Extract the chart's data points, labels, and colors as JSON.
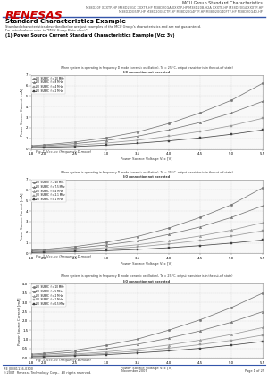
{
  "page_bg": "#ffffff",
  "header_logo_text": "RENESAS",
  "header_right_top": "MCU Group Standard Characteristics",
  "header_right_sub": "M38D20F XXXTP-HP M38D20GC XXXTP-HP M38D20GA XXXTP-HP M38D20B-H2A XXXTP-HP M38D20G4 XXXTP-HP\nM38D20G5TP-HP M38D20G5CTP-HP M38D20G4FTP-HP M38D20G40FTP-HP M38D20G40-HP",
  "divider_color": "#3355aa",
  "section_title": "Standard Characteristics Example",
  "section_desc1": "Standard characteristics described below are just examples of the MCU Group's characteristics and are not guaranteed.",
  "section_desc2": "For rated values, refer to \"MCU Group Data sheet\".",
  "subsection_title": "(1) Power Source Current Standard Characteristics Example (Vcc 3v)",
  "graphs": [
    {
      "title_line1": "When system is operating in frequency D mode (ceramic oscillation), Ta = 25 °C, output transistor is in the cut-off state)",
      "title_line2": "I/O connection not executed",
      "xlabel": "Power Source Voltage Vcc [V]",
      "ylabel": "Power Source Current [mA]",
      "xmin": 1.8,
      "xmax": 5.5,
      "ymin": 0.0,
      "ymax": 7.0,
      "yticks": [
        0.0,
        1.0,
        2.0,
        3.0,
        4.0,
        5.0,
        6.0,
        7.0
      ],
      "xticks": [
        1.8,
        2.0,
        2.5,
        3.0,
        3.5,
        4.0,
        4.5,
        5.0,
        5.5
      ],
      "fig_caption": "Fig. 1. Vcc-Icc (frequency D mode)",
      "series": [
        {
          "label": "VD  SUBRC  f = 10 MHz",
          "marker": "o",
          "color": "#777777",
          "data_x": [
            1.8,
            2.0,
            2.5,
            3.0,
            3.5,
            4.0,
            4.5,
            5.0,
            5.5
          ],
          "data_y": [
            0.3,
            0.38,
            0.65,
            1.05,
            1.6,
            2.4,
            3.4,
            4.6,
            6.2
          ]
        },
        {
          "label": "VD  SUBRC  f = 8 MHz",
          "marker": "^",
          "color": "#777777",
          "data_x": [
            1.8,
            2.0,
            2.5,
            3.0,
            3.5,
            4.0,
            4.5,
            5.0,
            5.5
          ],
          "data_y": [
            0.25,
            0.3,
            0.5,
            0.8,
            1.2,
            1.8,
            2.5,
            3.4,
            4.5
          ]
        },
        {
          "label": "VD  SUBRC  f = 4 MHz",
          "marker": "s",
          "color": "#999999",
          "data_x": [
            1.8,
            2.0,
            2.5,
            3.0,
            3.5,
            4.0,
            4.5,
            5.0,
            5.5
          ],
          "data_y": [
            0.18,
            0.22,
            0.35,
            0.55,
            0.82,
            1.2,
            1.65,
            2.2,
            2.9
          ]
        },
        {
          "label": "VD  SUBRC  f = 2 MHz",
          "marker": "s",
          "color": "#444444",
          "data_x": [
            1.8,
            2.0,
            2.5,
            3.0,
            3.5,
            4.0,
            4.5,
            5.0,
            5.5
          ],
          "data_y": [
            0.12,
            0.15,
            0.23,
            0.36,
            0.53,
            0.76,
            1.04,
            1.38,
            1.8
          ]
        }
      ]
    },
    {
      "title_line1": "When system is operating in frequency D mode (ceramic oscillation), Ta = 25 °C, output transistor is in the cut-off state)",
      "title_line2": "I/O connection not executed",
      "xlabel": "Power Source Voltage Vcc [V]",
      "ylabel": "Power Source Current [mA]",
      "xmin": 1.8,
      "xmax": 5.5,
      "ymin": 0.0,
      "ymax": 7.0,
      "yticks": [
        0.0,
        1.0,
        2.0,
        3.0,
        4.0,
        5.0,
        6.0,
        7.0
      ],
      "xticks": [
        1.8,
        2.0,
        2.5,
        3.0,
        3.5,
        4.0,
        4.5,
        5.0,
        5.5
      ],
      "fig_caption": "Fig. 2. Vcc-Icc (frequency D mode)",
      "series": [
        {
          "label": "VD  SUBRC  f = 10 MHz",
          "marker": "o",
          "color": "#777777",
          "data_x": [
            1.8,
            2.0,
            2.5,
            3.0,
            3.5,
            4.0,
            4.5,
            5.0,
            5.5
          ],
          "data_y": [
            0.3,
            0.38,
            0.65,
            1.05,
            1.6,
            2.4,
            3.4,
            4.6,
            6.2
          ]
        },
        {
          "label": "VD  SUBRC  f = 7.5 MHz",
          "marker": "^",
          "color": "#777777",
          "data_x": [
            1.8,
            2.0,
            2.5,
            3.0,
            3.5,
            4.0,
            4.5,
            5.0,
            5.5
          ],
          "data_y": [
            0.25,
            0.3,
            0.5,
            0.8,
            1.2,
            1.8,
            2.5,
            3.4,
            4.5
          ]
        },
        {
          "label": "VD  SUBRC  f = 4 MHz",
          "marker": "^",
          "color": "#999999",
          "data_x": [
            1.8,
            2.0,
            2.5,
            3.0,
            3.5,
            4.0,
            4.5,
            5.0,
            5.5
          ],
          "data_y": [
            0.18,
            0.22,
            0.35,
            0.55,
            0.82,
            1.2,
            1.65,
            2.2,
            2.9
          ]
        },
        {
          "label": "VD  SUBRC  f = 2.1 MHz",
          "marker": "s",
          "color": "#999999",
          "data_x": [
            1.8,
            2.0,
            2.5,
            3.0,
            3.5,
            4.0,
            4.5,
            5.0,
            5.5
          ],
          "data_y": [
            0.14,
            0.17,
            0.27,
            0.42,
            0.62,
            0.9,
            1.23,
            1.64,
            2.14
          ]
        },
        {
          "label": "VD  SUBRC  f = 1 MHz",
          "marker": "s",
          "color": "#444444",
          "data_x": [
            1.8,
            2.0,
            2.5,
            3.0,
            3.5,
            4.0,
            4.5,
            5.0,
            5.5
          ],
          "data_y": [
            0.09,
            0.11,
            0.17,
            0.26,
            0.38,
            0.54,
            0.74,
            0.98,
            1.27
          ]
        }
      ]
    },
    {
      "title_line1": "When system is operating in frequency B mode (ceramic oscillation), Ta = 25 °C, output transistor is in the cut-off state)",
      "title_line2": "I/O connection not executed",
      "xlabel": "Power Source Voltage Vcc [V]",
      "ylabel": "Power Source Current [mA]",
      "xmin": 1.8,
      "xmax": 5.5,
      "ymin": 0.0,
      "ymax": 4.0,
      "yticks": [
        0.0,
        0.5,
        1.0,
        1.5,
        2.0,
        2.5,
        3.0,
        3.5,
        4.0
      ],
      "xticks": [
        1.8,
        2.0,
        2.5,
        3.0,
        3.5,
        4.0,
        4.5,
        5.0,
        5.5
      ],
      "fig_caption": "Fig. 3. Vcc-Icc (frequency B mode)",
      "series": [
        {
          "label": "VD  SUBRC  f = 10 MHz",
          "marker": "o",
          "color": "#777777",
          "data_x": [
            1.8,
            2.0,
            2.5,
            3.0,
            3.5,
            4.0,
            4.5,
            5.0,
            5.5
          ],
          "data_y": [
            0.2,
            0.25,
            0.42,
            0.68,
            1.02,
            1.5,
            2.06,
            2.72,
            3.5
          ]
        },
        {
          "label": "VD  SUBRC  f = 5 MHz",
          "marker": "^",
          "color": "#777777",
          "data_x": [
            1.8,
            2.0,
            2.5,
            3.0,
            3.5,
            4.0,
            4.5,
            5.0,
            5.5
          ],
          "data_y": [
            0.15,
            0.19,
            0.31,
            0.5,
            0.74,
            1.07,
            1.46,
            1.93,
            2.5
          ]
        },
        {
          "label": "VD  SUBRC  f = 2 MHz",
          "marker": "^",
          "color": "#999999",
          "data_x": [
            1.8,
            2.0,
            2.5,
            3.0,
            3.5,
            4.0,
            4.5,
            5.0,
            5.5
          ],
          "data_y": [
            0.1,
            0.13,
            0.21,
            0.33,
            0.49,
            0.7,
            0.96,
            1.27,
            1.64
          ]
        },
        {
          "label": "VD  SUBRC  f = 1 MHz",
          "marker": "s",
          "color": "#999999",
          "data_x": [
            1.8,
            2.0,
            2.5,
            3.0,
            3.5,
            4.0,
            4.5,
            5.0,
            5.5
          ],
          "data_y": [
            0.08,
            0.1,
            0.16,
            0.25,
            0.37,
            0.53,
            0.72,
            0.95,
            1.23
          ]
        },
        {
          "label": "VD  SUBRC  f = 0.5 MHz",
          "marker": "s",
          "color": "#444444",
          "data_x": [
            1.8,
            2.0,
            2.5,
            3.0,
            3.5,
            4.0,
            4.5,
            5.0,
            5.5
          ],
          "data_y": [
            0.06,
            0.07,
            0.12,
            0.18,
            0.27,
            0.38,
            0.52,
            0.69,
            0.89
          ]
        }
      ]
    }
  ],
  "footer_doc": "RE J08B1136-0300",
  "footer_copy": "©2007  Renesas Technology Corp.,  All rights reserved.",
  "footer_date": "November 2007",
  "footer_page": "Page 1 of 25",
  "footer_line_color": "#3355aa"
}
